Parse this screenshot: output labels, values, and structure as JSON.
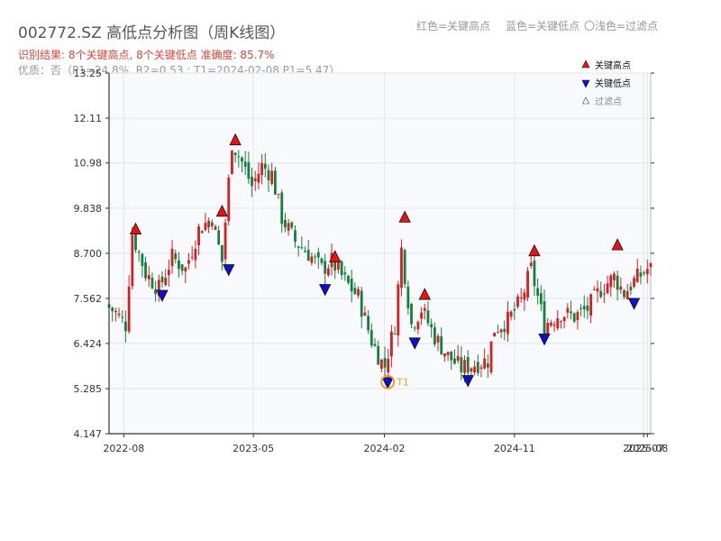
{
  "header": {
    "title": "002772.SZ 高低点分析图（周K线图）",
    "hint_red": "红色=关键高点",
    "hint_blue": "蓝色=关键低点",
    "hint_light": "〇浅色=过滤点",
    "result": "识别结果: 8个关键高点, 8个关键低点  准确度: 85.7%",
    "quality": "优质：否（P1=24.8%, R2=0.53 ; T1=2024-02-08 P1=5.47）"
  },
  "colors": {
    "up": "#d62020",
    "down": "#15803d",
    "high": "#ee1111",
    "low": "#1010cc",
    "t1": "#f0a020"
  },
  "chart_data": {
    "type": "candlestick",
    "title": "",
    "xlabel": "",
    "ylabel": "",
    "x_range": [
      "2022-07-01",
      "2025-08-15"
    ],
    "ylim": [
      4.147,
      13.25
    ],
    "yticks": [
      "4.147",
      "5.285",
      "6.424",
      "7.562",
      "8.700",
      "9.838",
      "10.98",
      "12.11",
      "13.25"
    ],
    "xticks": [
      {
        "date": "2022-08-01",
        "label": "2022-08"
      },
      {
        "date": "2023-05-01",
        "label": "2023-05"
      },
      {
        "date": "2024-02-01",
        "label": "2024-02"
      },
      {
        "date": "2024-11-01",
        "label": "2024-11"
      },
      {
        "date": "2025-07-31",
        "label": "2025-07"
      },
      {
        "date": "2025-08-08",
        "label": "2025-08"
      }
    ],
    "price_path": [
      [
        "2022-07-01",
        7.4
      ],
      [
        "2022-07-22",
        7.2
      ],
      [
        "2022-08-12",
        6.9
      ],
      [
        "2022-08-26",
        9.2
      ],
      [
        "2022-09-23",
        8.2
      ],
      [
        "2022-10-21",
        7.8
      ],
      [
        "2022-11-18",
        8.6
      ],
      [
        "2022-12-16",
        8.3
      ],
      [
        "2023-01-13",
        9.3
      ],
      [
        "2023-02-10",
        9.6
      ],
      [
        "2023-03-03",
        8.5
      ],
      [
        "2023-03-24",
        11.5
      ],
      [
        "2023-04-14",
        11.0
      ],
      [
        "2023-05-05",
        10.4
      ],
      [
        "2023-05-26",
        10.9
      ],
      [
        "2023-06-16",
        10.7
      ],
      [
        "2023-07-07",
        9.6
      ],
      [
        "2023-08-04",
        9.0
      ],
      [
        "2023-09-01",
        8.7
      ],
      [
        "2023-09-29",
        8.3
      ],
      [
        "2023-10-20",
        8.5
      ],
      [
        "2023-11-17",
        8.0
      ],
      [
        "2023-12-15",
        7.6
      ],
      [
        "2024-01-12",
        6.5
      ],
      [
        "2024-02-08",
        5.8
      ],
      [
        "2024-03-01",
        6.9
      ],
      [
        "2024-03-15",
        8.8
      ],
      [
        "2024-04-05",
        6.9
      ],
      [
        "2024-04-26",
        7.3
      ],
      [
        "2024-05-24",
        6.6
      ],
      [
        "2024-06-21",
        6.1
      ],
      [
        "2024-07-19",
        5.8
      ],
      [
        "2024-08-16",
        5.9
      ],
      [
        "2024-09-13",
        6.0
      ],
      [
        "2024-09-27",
        6.8
      ],
      [
        "2024-10-25",
        7.0
      ],
      [
        "2024-11-22",
        7.5
      ],
      [
        "2024-12-13",
        8.3
      ],
      [
        "2025-01-10",
        6.9
      ],
      [
        "2025-02-14",
        7.2
      ],
      [
        "2025-03-14",
        7.1
      ],
      [
        "2025-04-11",
        7.3
      ],
      [
        "2025-05-09",
        7.8
      ],
      [
        "2025-06-06",
        8.1
      ],
      [
        "2025-06-27",
        7.7
      ],
      [
        "2025-07-18",
        8.0
      ],
      [
        "2025-08-15",
        8.3
      ]
    ],
    "series": [
      {
        "name": "关键高点",
        "marker": "triangle-up",
        "points": [
          {
            "date": "2022-08-26",
            "value": 9.3
          },
          {
            "date": "2023-02-24",
            "value": 9.75
          },
          {
            "date": "2023-03-24",
            "value": 11.55
          },
          {
            "date": "2023-10-20",
            "value": 8.6
          },
          {
            "date": "2024-03-15",
            "value": 9.6
          },
          {
            "date": "2024-04-26",
            "value": 7.65
          },
          {
            "date": "2024-12-13",
            "value": 8.75
          },
          {
            "date": "2025-06-06",
            "value": 8.9
          }
        ]
      },
      {
        "name": "关键低点",
        "marker": "triangle-down",
        "points": [
          {
            "date": "2022-10-21",
            "value": 7.65
          },
          {
            "date": "2023-03-10",
            "value": 8.3
          },
          {
            "date": "2023-09-29",
            "value": 7.8
          },
          {
            "date": "2024-02-08",
            "value": 5.45
          },
          {
            "date": "2024-04-05",
            "value": 6.45
          },
          {
            "date": "2024-07-26",
            "value": 5.5
          },
          {
            "date": "2025-01-03",
            "value": 6.55
          },
          {
            "date": "2025-07-11",
            "value": 7.45
          }
        ]
      },
      {
        "name": "过滤点",
        "marker": "triangle-up-light",
        "points": []
      }
    ],
    "annotations": [
      {
        "date": "2024-02-08",
        "value": 5.45,
        "label": "T1"
      }
    ],
    "legend_position": "top-right",
    "grid": true
  }
}
